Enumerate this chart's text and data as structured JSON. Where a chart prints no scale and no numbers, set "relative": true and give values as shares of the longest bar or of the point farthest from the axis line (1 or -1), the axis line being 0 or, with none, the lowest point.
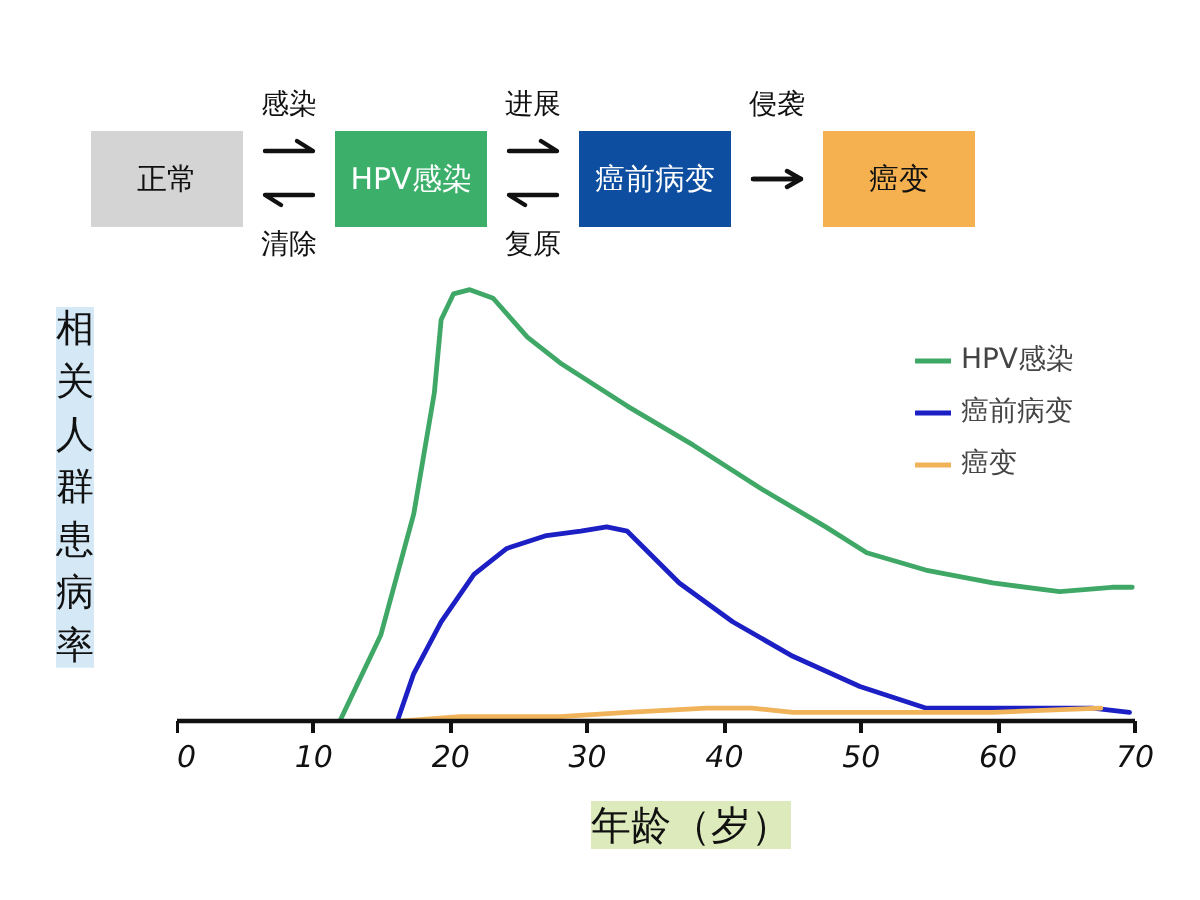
{
  "chart_data": [
    {
      "type": "other",
      "categories": [
        "正常",
        "HPV感染",
        "癌前病变",
        "癌变"
      ],
      "colors": [
        "#d4d4d4",
        "#3cb06a",
        "#0d4ea0",
        "#f5b04f"
      ],
      "annotations": [
        "感染",
        "清除",
        "进展",
        "复原",
        "侵袭"
      ]
    },
    {
      "type": "line",
      "relative": true,
      "xlabel": "年龄（岁）",
      "ylabel": "相关人群患病率",
      "xlim": [
        0,
        70
      ],
      "xticks": [
        0,
        10,
        20,
        30,
        40,
        50,
        60,
        70
      ],
      "legend": "top right",
      "line_style": "solid",
      "series": [
        {
          "name": "HPV感染",
          "color": "#3fa866",
          "x": [
            11.9,
            14.9,
            17.3,
            18.8,
            19.3,
            20.2,
            21.4,
            23.1,
            25.6,
            28.0,
            32.9,
            37.7,
            42.6,
            47.4,
            50.4,
            54.7,
            59.6,
            64.5,
            68.3,
            69.8
          ],
          "values": [
            0,
            0.2,
            0.48,
            0.76,
            0.93,
            0.99,
            1,
            0.98,
            0.89,
            0.83,
            0.73,
            0.64,
            0.54,
            0.45,
            0.39,
            0.35,
            0.32,
            0.3,
            0.31,
            0.31
          ]
        },
        {
          "name": "癌前病变",
          "color": "#1b1fc4",
          "x": [
            16.1,
            17.3,
            19.3,
            21.7,
            24.1,
            27.0,
            29.5,
            31.4,
            32.9,
            36.7,
            40.6,
            45.0,
            49.9,
            54.7,
            60.6,
            66.9,
            69.6
          ],
          "values": [
            0,
            0.11,
            0.23,
            0.34,
            0.4,
            0.43,
            0.44,
            0.45,
            0.44,
            0.32,
            0.23,
            0.15,
            0.08,
            0.03,
            0.03,
            0.03,
            0.02
          ]
        },
        {
          "name": "癌变",
          "color": "#f0b35a",
          "x": [
            16.5,
            20.7,
            28.0,
            32.9,
            38.7,
            42.0,
            45.0,
            52.3,
            59.6,
            67.5
          ],
          "values": [
            0,
            0.01,
            0.01,
            0.02,
            0.03,
            0.03,
            0.02,
            0.02,
            0.02,
            0.03
          ]
        }
      ]
    }
  ]
}
